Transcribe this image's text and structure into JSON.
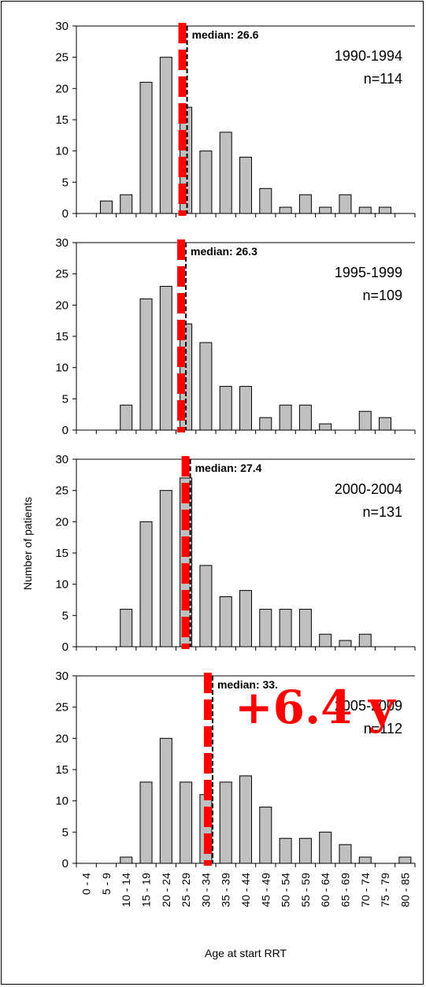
{
  "chart_data": {
    "type": "bar",
    "ylabel": "Number of patients",
    "xlabel": "Age at start RRT",
    "categories": [
      "0 - 4",
      "5 - 9",
      "10 - 14",
      "15 - 19",
      "20 - 24",
      "25 - 29",
      "30 - 34",
      "35 - 39",
      "40 - 44",
      "45 - 49",
      "50 - 54",
      "55 - 59",
      "60 - 64",
      "65 - 69",
      "70 - 74",
      "75 - 79",
      "80 - 85"
    ],
    "ylim": [
      0,
      30
    ],
    "yticks": [
      0,
      5,
      10,
      15,
      20,
      25,
      30
    ],
    "annotation": "+6.4 y",
    "panels": [
      {
        "period": "1990-1994",
        "n": "n=114",
        "median_label": "median: 26.6",
        "median": 26.6,
        "values": [
          0,
          2,
          3,
          21,
          25,
          17,
          10,
          13,
          9,
          4,
          1,
          3,
          1,
          3,
          1,
          1,
          0
        ]
      },
      {
        "period": "1995-1999",
        "n": "n=109",
        "median_label": "median: 26.3",
        "median": 26.3,
        "values": [
          0,
          0,
          4,
          21,
          23,
          17,
          14,
          7,
          7,
          2,
          4,
          4,
          1,
          0,
          3,
          2,
          0
        ]
      },
      {
        "period": "2000-2004",
        "n": "n=131",
        "median_label": "median: 27.4",
        "median": 27.4,
        "values": [
          0,
          0,
          6,
          20,
          25,
          27,
          13,
          8,
          9,
          6,
          6,
          6,
          2,
          1,
          2,
          0,
          0
        ]
      },
      {
        "period": "2005-2009",
        "n": "n=112",
        "median_label": "median: 33.",
        "median": 33.0,
        "values": [
          0,
          0,
          1,
          13,
          20,
          13,
          11,
          13,
          14,
          9,
          4,
          4,
          5,
          3,
          1,
          0,
          1
        ]
      }
    ]
  }
}
